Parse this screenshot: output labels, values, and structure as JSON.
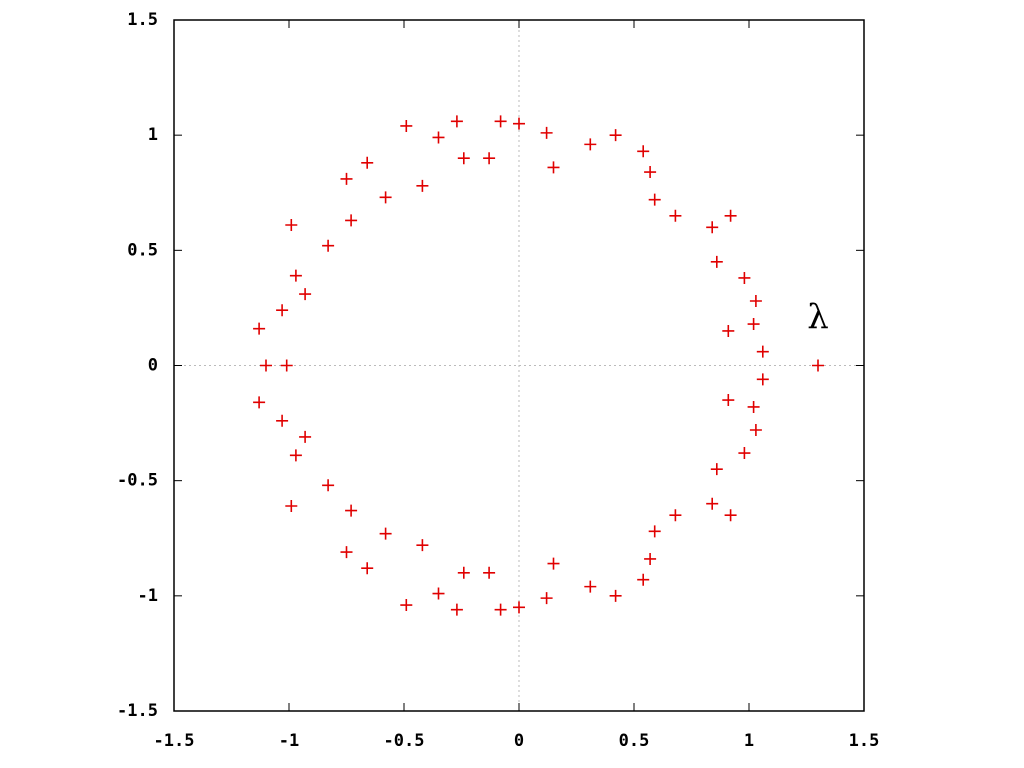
{
  "chart_data": {
    "type": "scatter",
    "color": "#e00000",
    "zero_lines": true,
    "xlim": [
      -1.5,
      1.5
    ],
    "ylim": [
      -1.5,
      1.5
    ],
    "xticks": [
      -1.5,
      -1,
      -0.5,
      0,
      0.5,
      1,
      1.5
    ],
    "yticks": [
      -1.5,
      -1,
      -0.5,
      0,
      0.5,
      1,
      1.5
    ],
    "annotation": {
      "text": "λ",
      "x": 1.3,
      "y": 0.15
    },
    "x": [
      -0.49,
      -0.27,
      -0.08,
      0.0,
      0.12,
      -0.35,
      -0.24,
      -0.13,
      0.31,
      0.42,
      0.54,
      0.15,
      0.57,
      0.59,
      0.68,
      0.84,
      0.92,
      0.86,
      0.98,
      1.03,
      1.02,
      0.91,
      1.06,
      -0.66,
      -0.75,
      -0.42,
      -0.58,
      -0.73,
      -0.99,
      -0.83,
      -0.97,
      -0.93,
      -1.03,
      -1.13,
      -0.49,
      -0.27,
      -0.08,
      0.0,
      0.12,
      -0.35,
      -0.24,
      -0.13,
      0.31,
      0.42,
      0.54,
      0.15,
      0.57,
      0.59,
      0.68,
      0.84,
      0.92,
      0.86,
      0.98,
      1.03,
      1.02,
      0.91,
      1.06,
      -0.66,
      -0.75,
      -0.42,
      -0.58,
      -0.73,
      -0.99,
      -0.83,
      -0.97,
      -0.93,
      -1.03,
      -1.13,
      -1.1,
      -1.01,
      1.3
    ],
    "y": [
      1.04,
      1.06,
      1.06,
      1.05,
      1.01,
      0.99,
      0.9,
      0.9,
      0.96,
      1.0,
      0.93,
      0.86,
      0.84,
      0.72,
      0.65,
      0.6,
      0.65,
      0.45,
      0.38,
      0.28,
      0.18,
      0.15,
      0.06,
      0.88,
      0.81,
      0.78,
      0.73,
      0.63,
      0.61,
      0.52,
      0.39,
      0.31,
      0.24,
      0.16,
      -1.04,
      -1.06,
      -1.06,
      -1.05,
      -1.01,
      -0.99,
      -0.9,
      -0.9,
      -0.96,
      -1.0,
      -0.93,
      -0.86,
      -0.84,
      -0.72,
      -0.65,
      -0.6,
      -0.65,
      -0.45,
      -0.38,
      -0.28,
      -0.18,
      -0.15,
      -0.06,
      -0.88,
      -0.81,
      -0.78,
      -0.73,
      -0.63,
      -0.61,
      -0.52,
      -0.39,
      -0.31,
      -0.24,
      -0.16,
      0,
      0,
      0
    ]
  }
}
